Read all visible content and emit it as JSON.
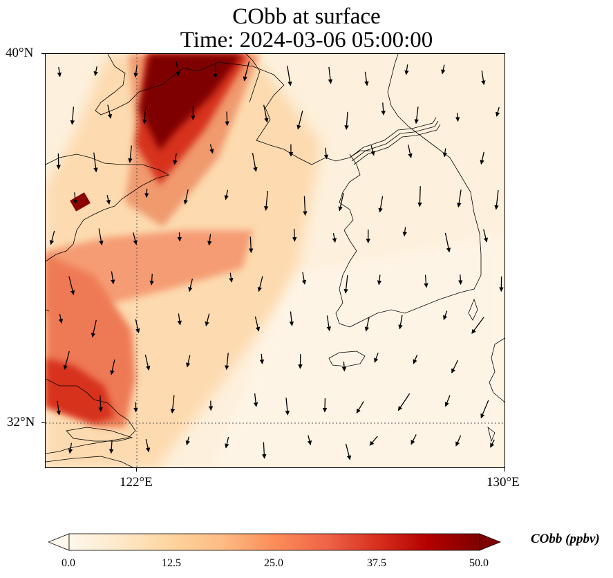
{
  "title": {
    "line1": "CObb at surface",
    "line2": "Time: 2024-03-06 05:00:00"
  },
  "map": {
    "lat_range": [
      31.0,
      40.0
    ],
    "lon_range": [
      120.0,
      130.0
    ],
    "gridlines": {
      "lat": [
        32
      ],
      "lon": [
        122
      ],
      "style": "dotted"
    },
    "coastlines": true,
    "field": "CObb",
    "units": "ppbv",
    "colormap": "OrRd",
    "vmin": 0.0,
    "vmax": 50.0,
    "plume_axes": [
      {
        "lon": [
          122.1,
          124.0
        ],
        "lat": [
          40.0,
          38.2
        ],
        "peak": 50
      },
      {
        "lon": [
          120.8,
          124.3
        ],
        "lat": [
          36.7,
          35.7
        ],
        "peak": 35
      },
      {
        "lon": [
          120.0,
          122.4
        ],
        "lat": [
          35.5,
          31.8
        ],
        "peak": 38
      }
    ],
    "wind_direction": "north-northerly (arrows pointing south)"
  },
  "axes": {
    "y_ticks": [
      "40°N",
      "32°N"
    ],
    "x_ticks": [
      "122°E",
      "130°E"
    ]
  },
  "colorbar": {
    "label": "CObb (ppbv)",
    "ticks": [
      "0.0",
      "12.5",
      "25.0",
      "37.5",
      "50.0"
    ],
    "extend": "both",
    "colors": [
      "#fff7ec",
      "#fee8c8",
      "#fdd49e",
      "#fdbb84",
      "#fc8d59",
      "#ef6548",
      "#d7301f",
      "#b30000",
      "#7f0000"
    ]
  }
}
